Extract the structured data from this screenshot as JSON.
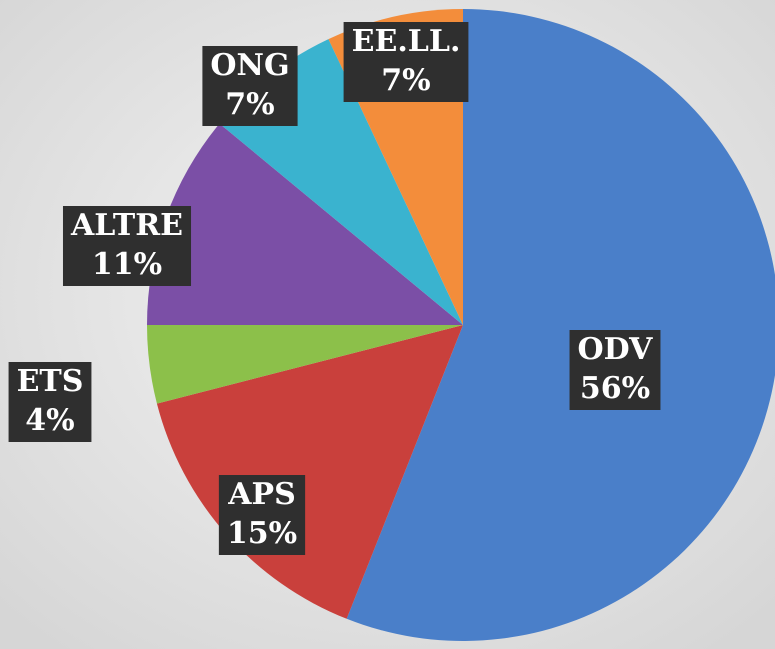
{
  "chart_data": {
    "type": "pie",
    "categories": [
      "ODV",
      "APS",
      "ETS",
      "ALTRE",
      "ONG",
      "EE.LL."
    ],
    "values": [
      56,
      15,
      4,
      11,
      7,
      7
    ],
    "value_labels": [
      "56%",
      "15%",
      "4%",
      "11%",
      "7%",
      "7%"
    ],
    "colors": [
      "#4a7fc9",
      "#c9403c",
      "#8cc04a",
      "#7b4fa6",
      "#3ab3cf",
      "#f38d3b"
    ]
  }
}
